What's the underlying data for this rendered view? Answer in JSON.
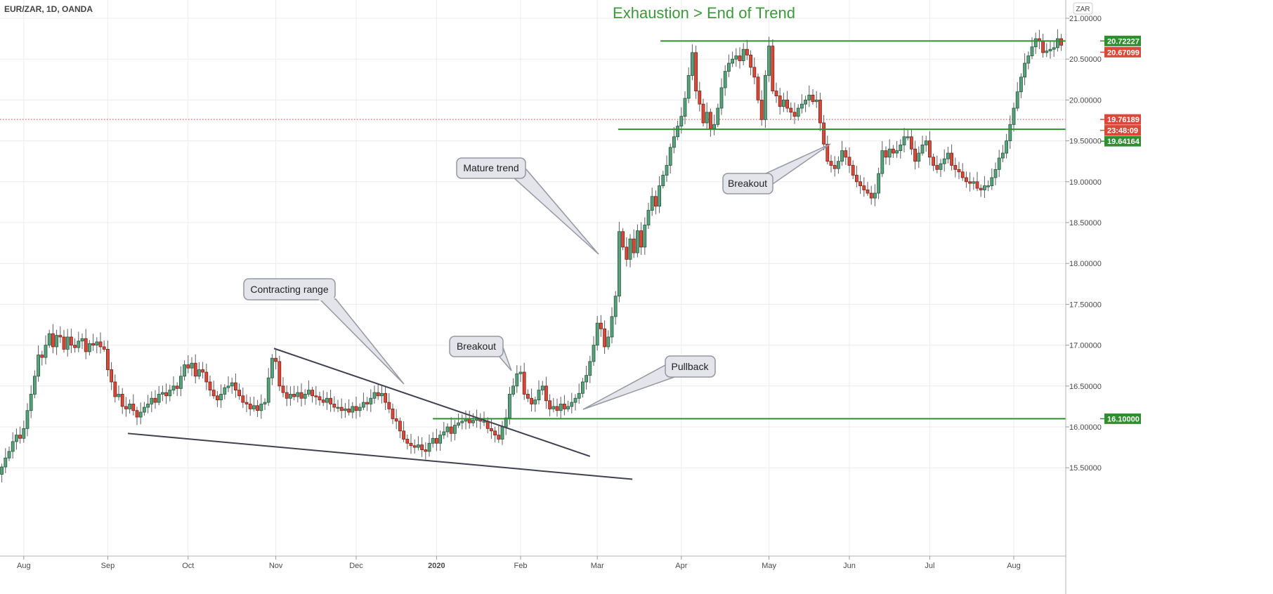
{
  "header": {
    "symbol_title": "EUR/ZAR, 1D, OANDA",
    "currency_badge": "ZAR"
  },
  "colors": {
    "up": "#5ba07c",
    "up_border": "#1e5b3a",
    "down": "#d9493a",
    "down_border": "#7c1f17",
    "level_line": "#2f8f2f",
    "title": "#3a9a3a",
    "last_price": "#d9493a",
    "callout_fill": "#e3e5ea",
    "callout_border": "#9598a1",
    "trendline": "#3f4150"
  },
  "chart_data": {
    "type": "candlestick",
    "title": "Exhaustion > End of Trend",
    "interval": "1D",
    "first_open": 15.42,
    "closes": [
      15.51,
      15.62,
      15.7,
      15.82,
      15.9,
      15.86,
      15.98,
      16.2,
      16.4,
      16.62,
      16.88,
      16.85,
      17.0,
      17.14,
      16.98,
      17.12,
      17.1,
      16.95,
      17.1,
      17.0,
      16.97,
      17.05,
      17.08,
      16.92,
      17.02,
      17.0,
      17.04,
      16.98,
      16.95,
      16.7,
      16.55,
      16.37,
      16.4,
      16.25,
      16.22,
      16.28,
      16.2,
      16.12,
      16.18,
      16.24,
      16.28,
      16.35,
      16.3,
      16.4,
      16.42,
      16.38,
      16.45,
      16.5,
      16.47,
      16.62,
      16.76,
      16.72,
      16.78,
      16.62,
      16.7,
      16.67,
      16.55,
      16.45,
      16.38,
      16.33,
      16.4,
      16.48,
      16.5,
      16.54,
      16.45,
      16.38,
      16.3,
      16.28,
      16.22,
      16.26,
      16.2,
      16.28,
      16.3,
      16.6,
      16.84,
      16.8,
      16.5,
      16.42,
      16.35,
      16.4,
      16.37,
      16.42,
      16.35,
      16.4,
      16.45,
      16.38,
      16.37,
      16.33,
      16.3,
      16.35,
      16.28,
      16.24,
      16.24,
      16.2,
      16.22,
      16.18,
      16.25,
      16.2,
      16.24,
      16.3,
      16.28,
      16.35,
      16.42,
      16.38,
      16.41,
      16.3,
      16.22,
      16.1,
      16.07,
      15.95,
      15.85,
      15.8,
      15.77,
      15.75,
      15.78,
      15.72,
      15.7,
      15.8,
      15.86,
      15.8,
      15.9,
      15.94,
      16.0,
      15.92,
      16.02,
      16.05,
      16.07,
      16.1,
      16.05,
      16.08,
      16.1,
      16.07,
      16.07,
      15.98,
      15.95,
      15.9,
      15.85,
      16.0,
      16.11,
      16.4,
      16.5,
      16.65,
      16.67,
      16.4,
      16.35,
      16.28,
      16.33,
      16.45,
      16.5,
      16.32,
      16.22,
      16.25,
      16.2,
      16.28,
      16.22,
      16.25,
      16.3,
      16.35,
      16.41,
      16.55,
      16.63,
      16.8,
      17.0,
      17.27,
      17.2,
      16.98,
      17.1,
      17.35,
      17.6,
      18.39,
      18.2,
      18.05,
      18.3,
      18.13,
      18.4,
      18.2,
      18.47,
      18.65,
      18.82,
      18.7,
      18.95,
      19.08,
      19.2,
      19.42,
      19.55,
      19.68,
      19.8,
      20.02,
      20.3,
      20.58,
      20.11,
      19.95,
      19.72,
      19.85,
      19.65,
      19.7,
      19.9,
      20.15,
      20.35,
      20.45,
      20.5,
      20.54,
      20.48,
      20.62,
      20.55,
      20.4,
      20.28,
      20.0,
      19.76,
      20.3,
      20.66,
      20.11,
      20.05,
      19.92,
      20.0,
      19.9,
      19.85,
      19.8,
      19.9,
      19.95,
      20.0,
      20.06,
      19.98,
      20.0,
      19.72,
      19.46,
      19.25,
      19.2,
      19.16,
      19.25,
      19.38,
      19.3,
      19.2,
      19.08,
      19.0,
      18.95,
      18.9,
      18.86,
      18.8,
      18.86,
      19.1,
      19.38,
      19.3,
      19.4,
      19.35,
      19.38,
      19.45,
      19.55,
      19.55,
      19.4,
      19.25,
      19.35,
      19.45,
      19.5,
      19.3,
      19.2,
      19.15,
      19.22,
      19.28,
      19.35,
      19.2,
      19.15,
      19.12,
      19.05,
      19.0,
      18.98,
      19.0,
      18.92,
      18.9,
      18.95,
      18.95,
      19.05,
      19.15,
      19.29,
      19.35,
      19.5,
      19.7,
      19.9,
      20.1,
      20.28,
      20.45,
      20.54,
      20.65,
      20.75,
      20.72,
      20.58,
      20.6,
      20.62,
      20.64,
      20.75,
      20.67
    ],
    "y_ticks": [
      "15.50000",
      "16.00000",
      "16.50000",
      "17.00000",
      "17.50000",
      "18.00000",
      "18.50000",
      "19.00000",
      "19.50000",
      "20.00000",
      "20.50000",
      "21.00000"
    ],
    "ylim": [
      14.42,
      21.22
    ],
    "x_ticks": [
      "Aug",
      "Sep",
      "Oct",
      "Nov",
      "Dec",
      "2020",
      "Feb",
      "Mar",
      "Apr",
      "May",
      "Jun",
      "Jul",
      "Aug"
    ],
    "grid": true,
    "levels": [
      {
        "value": 20.72227,
        "label": "20.72227"
      },
      {
        "value": 19.64164,
        "label": "19.64164"
      },
      {
        "value": 16.1,
        "label": "16.10000"
      }
    ],
    "last_price": {
      "value": 20.67099,
      "label": "20.67099"
    },
    "marker_price": {
      "value": 19.76189,
      "label": "19.76189",
      "countdown": "23:48:09"
    },
    "trendlines": [
      {
        "from": [
          74.5,
          16.96
        ],
        "to": [
          161,
          15.64
        ]
      },
      {
        "from": [
          34.5,
          15.92
        ],
        "to": [
          172.6,
          15.36
        ]
      }
    ],
    "annotations": [
      "Contracting range",
      "Mature trend",
      "Breakout",
      "Pullback",
      "Breakout"
    ]
  }
}
